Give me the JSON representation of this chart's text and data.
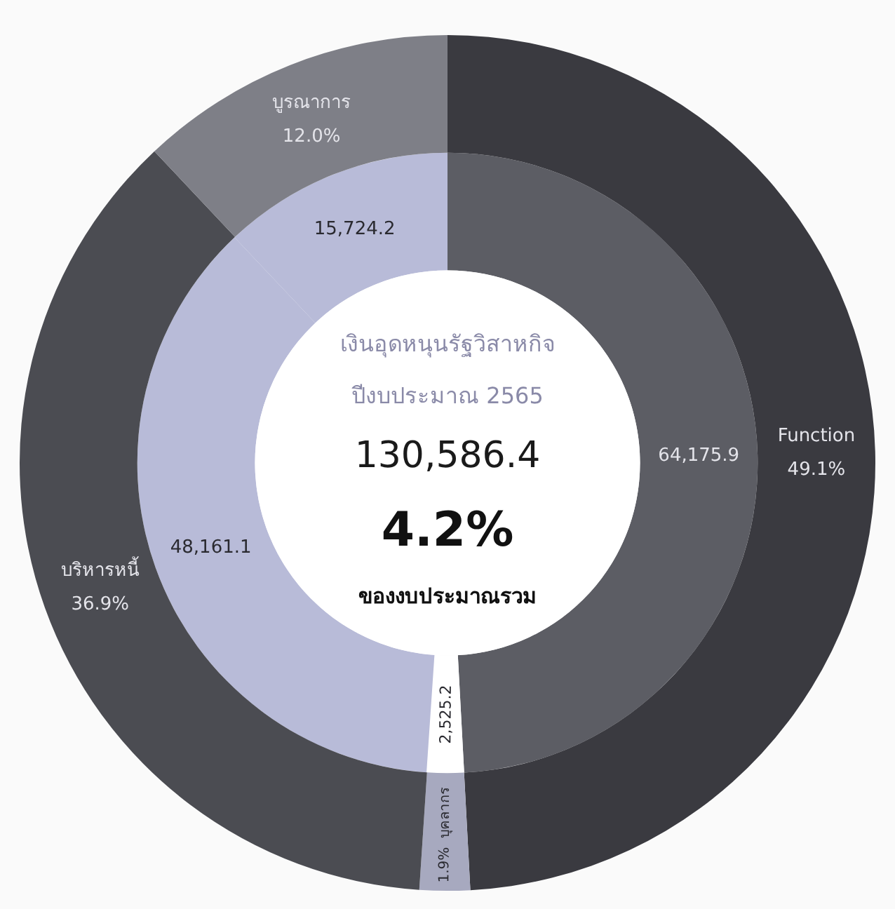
{
  "chart_data": {
    "type": "donut",
    "categories": [
      "Function",
      "บุคลากร",
      "บริหารหนี้",
      "บูรณาการ"
    ],
    "series": [
      {
        "values": [
          64175.9,
          2525.2,
          48161.1,
          15724.2
        ],
        "colors": [
          "#5c5d64",
          "#ffffff",
          "#b8bbd8",
          "#b8bbd8"
        ],
        "value_labels": [
          "64,175.9",
          "2,525.2",
          "48,161.1",
          "15,724.2"
        ]
      },
      {
        "values": [
          49.1,
          1.9,
          36.9,
          12.0
        ],
        "colors": [
          "#3a3a40",
          "#a7a9bf",
          "#4b4c52",
          "#7e7f87"
        ],
        "value_labels": [
          "49.1%",
          "1.9%",
          "36.9%",
          "12.0%"
        ]
      }
    ],
    "annotations": [
      "เงินอุดหนุนรัฐวิสาหกิจ",
      "ปีงบประมาณ 2565",
      "130,586.4",
      "4.2%",
      "ของงบประมาณรวม"
    ]
  }
}
